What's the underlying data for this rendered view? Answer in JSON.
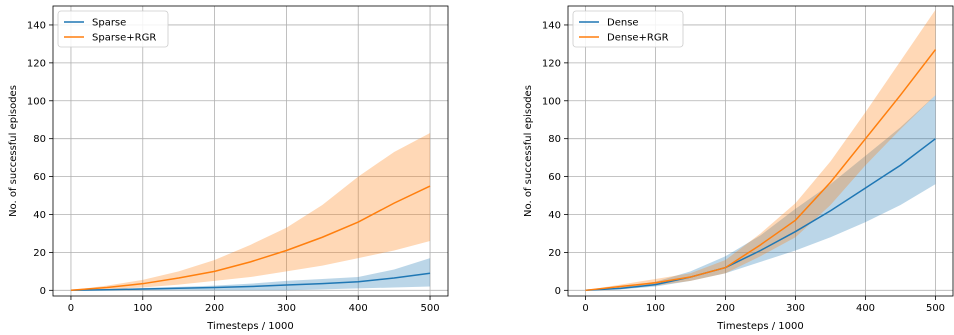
{
  "chart_data": [
    {
      "type": "line",
      "xlabel": "Timesteps / 1000",
      "ylabel": "No. of successful episodes",
      "xlim": [
        -25,
        525
      ],
      "ylim": [
        -3,
        150
      ],
      "xticks": [
        0,
        100,
        200,
        300,
        400,
        500
      ],
      "yticks": [
        0,
        20,
        40,
        60,
        80,
        100,
        120,
        140
      ],
      "grid": true,
      "legend_position": "top-left",
      "x": [
        0,
        50,
        100,
        150,
        200,
        250,
        300,
        350,
        400,
        450,
        500
      ],
      "series": [
        {
          "name": "Sparse",
          "color": "#1f77b4",
          "mean": [
            0,
            0.3,
            0.7,
            1.1,
            1.5,
            2.0,
            2.8,
            3.5,
            4.5,
            6.5,
            9
          ],
          "lower": [
            0,
            0,
            0,
            0,
            0,
            0,
            0,
            0.5,
            1,
            1.5,
            2
          ],
          "upper": [
            0,
            0.6,
            1.2,
            1.8,
            2.5,
            3.5,
            5,
            6,
            7,
            11,
            17
          ]
        },
        {
          "name": "Sparse+RGR",
          "color": "#ff7f0e",
          "mean": [
            0,
            1.5,
            3.5,
            6.5,
            10,
            15,
            21,
            28,
            36,
            46,
            55
          ],
          "lower": [
            0,
            0.5,
            1.5,
            3,
            5,
            7,
            10,
            13,
            17,
            21,
            26
          ],
          "upper": [
            0,
            2.5,
            5.5,
            10,
            16,
            24,
            33,
            45,
            60,
            73,
            83
          ]
        }
      ]
    },
    {
      "type": "line",
      "xlabel": "Timesteps / 1000",
      "ylabel": "No. of successful episodes",
      "xlim": [
        -25,
        525
      ],
      "ylim": [
        -3,
        150
      ],
      "xticks": [
        0,
        100,
        200,
        300,
        400,
        500
      ],
      "yticks": [
        0,
        20,
        40,
        60,
        80,
        100,
        120,
        140
      ],
      "grid": true,
      "legend_position": "top-left",
      "x": [
        0,
        50,
        100,
        150,
        200,
        250,
        300,
        350,
        400,
        450,
        500
      ],
      "series": [
        {
          "name": "Dense",
          "color": "#1f77b4",
          "mean": [
            0,
            1,
            3,
            7,
            12,
            21,
            31,
            42,
            54,
            66,
            80
          ],
          "lower": [
            0,
            0.5,
            2,
            5,
            9,
            15,
            21,
            28,
            36,
            45,
            56
          ],
          "upper": [
            0,
            1.5,
            4.5,
            10,
            18,
            29,
            43,
            56,
            71,
            86,
            103
          ]
        },
        {
          "name": "Dense+RGR",
          "color": "#ff7f0e",
          "mean": [
            0,
            2,
            4,
            7,
            12,
            24,
            37,
            57,
            80,
            103,
            127
          ],
          "lower": [
            0,
            1,
            2.5,
            5,
            9,
            18,
            28,
            45,
            66,
            85,
            103
          ],
          "upper": [
            0,
            3,
            6,
            9,
            16,
            30,
            46,
            68,
            94,
            121,
            148
          ]
        }
      ]
    }
  ]
}
